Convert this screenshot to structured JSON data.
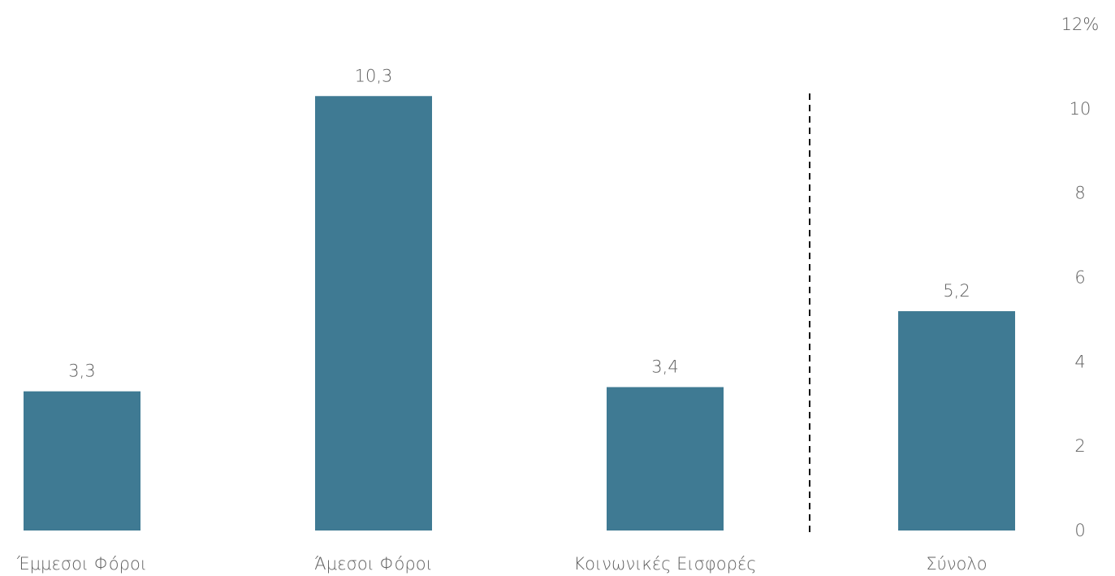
{
  "chart_data": {
    "type": "bar",
    "categories": [
      "Έμμεσοι Φόροι",
      "Άμεσοι Φόροι",
      "Κοινωνικές Εισφορές",
      "Σύνολο"
    ],
    "values": [
      3.3,
      10.3,
      3.4,
      5.2
    ],
    "value_labels": [
      "3,3",
      "10,3",
      "3,4",
      "5,2"
    ],
    "y_ticks": [
      0,
      2,
      4,
      6,
      8,
      10,
      12
    ],
    "y_tick_labels": [
      "0",
      "2",
      "4",
      "6",
      "8",
      "10",
      "12%"
    ],
    "ylim": [
      0,
      12
    ],
    "y_axis_position": "right",
    "grid": false,
    "separator_after_category": 2,
    "colors": {
      "bar": "#3f7a93",
      "text": "#5f5f5f",
      "separator": "#111111"
    }
  }
}
